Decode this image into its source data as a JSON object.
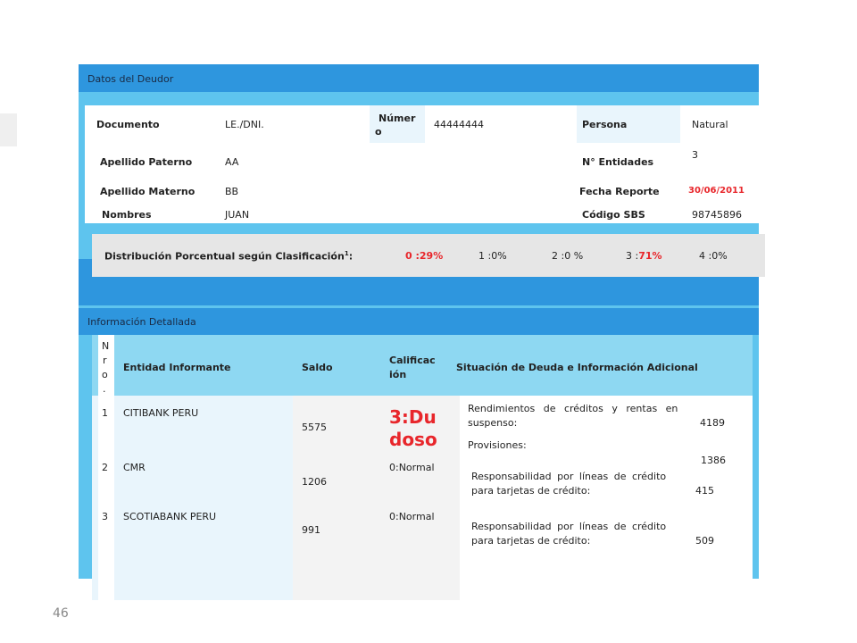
{
  "slide": {
    "page_number": "46"
  },
  "deudor": {
    "section_title": "Datos del Deudor",
    "documento_label": "Documento",
    "documento_value": "LE./DNI.",
    "numero_label_1": "Númer",
    "numero_label_2": "o",
    "numero_value": "44444444",
    "persona_label": "Persona",
    "persona_value": "Natural",
    "apellido_paterno_label": "Apellido Paterno",
    "apellido_paterno_value": "AA",
    "entidades_label": "N° Entidades",
    "entidades_value": "3",
    "apellido_materno_label": "Apellido Materno",
    "apellido_materno_value": "BB",
    "fecha_label": "Fecha Reporte",
    "fecha_value": "30/06/2011",
    "nombres_label": "Nombres",
    "nombres_value": "JUAN",
    "codigo_label": "Código SBS",
    "codigo_value": "98745896"
  },
  "distribucion": {
    "label": "Distribución Porcentual según Clasificación",
    "superscript": "1",
    "colon": ":",
    "c0": "0 :29%",
    "c1": "1 :0%",
    "c2": "2 :0 %",
    "c3_prefix": "3 :",
    "c3_value": "71%",
    "c4": "4 :0%"
  },
  "detalle": {
    "section_title": "Información Detallada",
    "headers": {
      "nro_1": "N",
      "nro_2": "r",
      "nro_3": "o",
      "nro_4": ".",
      "entidad": "Entidad Informante",
      "saldo": "Saldo",
      "calif_1": "Calificac",
      "calif_2": "ión",
      "situacion": "Situación de Deuda e Información Adicional"
    },
    "rows": [
      {
        "nro": "1",
        "entidad": "CITIBANK PERU",
        "saldo": "5575",
        "calif_1": "3:Du",
        "calif_2": "doso"
      },
      {
        "nro": "2",
        "entidad": "CMR",
        "saldo": "1206",
        "calif": "0:Normal"
      },
      {
        "nro": "3",
        "entidad": "SCOTIABANK PERU",
        "saldo": "991",
        "calif": "0:Normal"
      }
    ],
    "situacion": {
      "rend_1": "Rendimientos de créditos y rentas en",
      "rend_2": "suspenso:",
      "rend_value": "4189",
      "provisiones": "Provisiones:",
      "provisiones_value": "1386",
      "resp1_1": "Responsabilidad por líneas de crédito",
      "resp1_2": "para tarjetas de crédito:",
      "resp1_value": "415",
      "resp2_1": "Responsabilidad por líneas de crédito",
      "resp2_2": "para tarjetas de crédito:",
      "resp2_value": "509"
    }
  }
}
